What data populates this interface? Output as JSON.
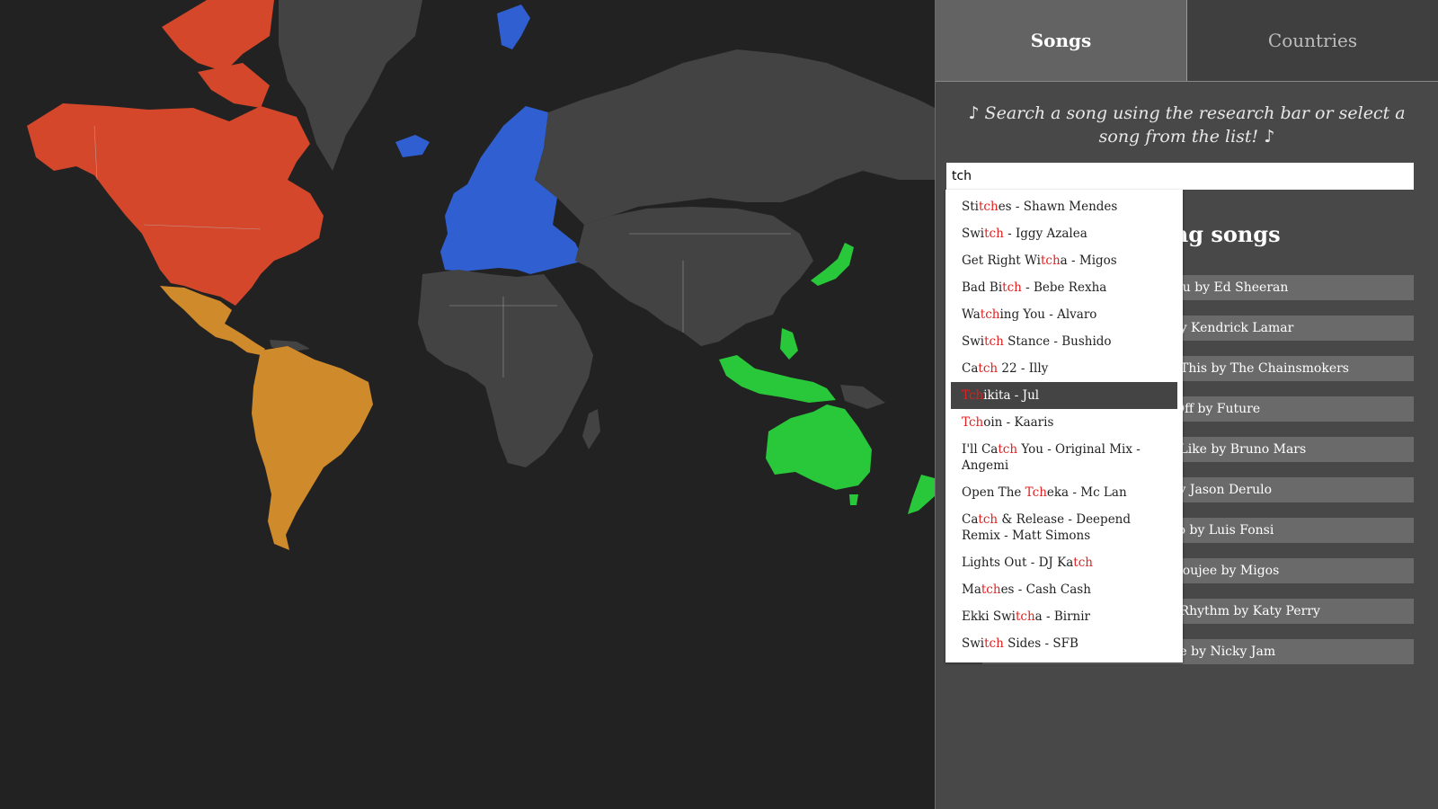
{
  "tabs": [
    {
      "label": "Songs",
      "active": true
    },
    {
      "label": "Countries",
      "active": false
    }
  ],
  "hint": "♪ Search a song using the research bar or select a song from the list! ♪",
  "search": {
    "value": "tch",
    "placeholder": ""
  },
  "trending": {
    "title": "Trending songs",
    "items": [
      "Shape of You by Ed Sheeran",
      "HUMBLE. by Kendrick Lamar",
      "Something Just Like This by The Chainsmokers",
      "Mask Off by Future",
      "That's What I Like by Bruno Mars",
      "Swalla by Jason Derulo",
      "Despacito by Luis Fonsi",
      "Bad and Boujee by Migos",
      "Chained To The Rhythm by Katy Perry",
      "El Amante by Nicky Jam"
    ]
  },
  "dropdown": {
    "selected_index": 7,
    "items": [
      {
        "pre": "Sti",
        "match": "tch",
        "post": "es - Shawn Mendes"
      },
      {
        "pre": "Swi",
        "match": "tch",
        "post": " - Iggy Azalea"
      },
      {
        "pre": "Get Right Wi",
        "match": "tch",
        "post": "a - Migos"
      },
      {
        "pre": "Bad Bi",
        "match": "tch",
        "post": " - Bebe Rexha"
      },
      {
        "pre": "Wa",
        "match": "tch",
        "post": "ing You - Alvaro"
      },
      {
        "pre": "Swi",
        "match": "tch",
        "post": " Stance - Bushido"
      },
      {
        "pre": "Ca",
        "match": "tch",
        "post": " 22 - Illy"
      },
      {
        "pre": "",
        "match": "Tch",
        "post": "ikita - Jul"
      },
      {
        "pre": "",
        "match": "Tch",
        "post": "oin - Kaaris"
      },
      {
        "pre": "I'll Ca",
        "match": "tch",
        "post": " You - Original Mix - Angemi"
      },
      {
        "pre": "Open The ",
        "match": "Tch",
        "post": "eka - Mc Lan"
      },
      {
        "pre": "Ca",
        "match": "tch",
        "post": " & Release - Deepend Remix - Matt Simons"
      },
      {
        "pre": "Lights Out - DJ Ka",
        "match": "tch",
        "post": ""
      },
      {
        "pre": "Ma",
        "match": "tch",
        "post": "es - Cash Cash"
      },
      {
        "pre": "Ekki Swi",
        "match": "tch",
        "post": "a - Birnir"
      },
      {
        "pre": "Swi",
        "match": "tch",
        "post": " Sides - SFB"
      }
    ]
  },
  "map": {
    "colors": {
      "background": "#222222",
      "default": "#434343",
      "north_america": "#d4472b",
      "latin_america": "#cf8a2b",
      "europe": "#2f5fd1",
      "asia_pacific": "#28c83a"
    }
  }
}
